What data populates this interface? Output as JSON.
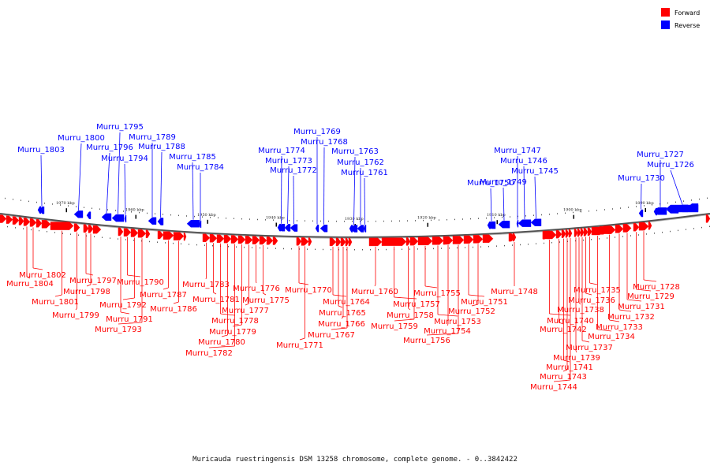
{
  "colors": {
    "forward": "#ff0000",
    "reverse": "#0000ff",
    "backbone": "#808080"
  },
  "legend": [
    {
      "label": "Forward",
      "color": "#ff0000"
    },
    {
      "label": "Reverse",
      "color": "#0000ff"
    }
  ],
  "caption": "Muricauda ruestringensis DSM 13258 chromosome, complete genome. - 0..3842422",
  "axis_ticks": [
    "1970 kbp",
    "1960 kbp",
    "1950 kbp",
    "1940 kbp",
    "1930 kbp",
    "1920 kbp",
    "1910 kbp",
    "1900 kbp",
    "1890 kbp"
  ],
  "reverse_genes": [
    "Murru_1803",
    "Murru_1800",
    "Murru_1796",
    "Murru_1795",
    "Murru_1794",
    "Murru_1789",
    "Murru_1788",
    "Murru_1785",
    "Murru_1784",
    "Murru_1774",
    "Murru_1773",
    "Murru_1772",
    "Murru_1769",
    "Murru_1768",
    "Murru_1763",
    "Murru_1762",
    "Murru_1761",
    "Murru_1750",
    "Murru_1749",
    "Murru_1747",
    "Murru_1746",
    "Murru_1745",
    "Murru_1730",
    "Murru_1727",
    "Murru_1726"
  ],
  "forward_genes": [
    "Murru_1802",
    "Murru_1804",
    "Murru_1801",
    "Murru_1799",
    "Murru_1797",
    "Murru_1798",
    "Murru_1790",
    "Murru_1792",
    "Murru_1791",
    "Murru_1793",
    "Murru_1787",
    "Murru_1786",
    "Murru_1783",
    "Murru_1781",
    "Murru_1778",
    "Murru_1780",
    "Murru_1782",
    "Murru_1779",
    "Murru_1777",
    "Murru_1776",
    "Murru_1775",
    "Murru_1770",
    "Murru_1771",
    "Murru_1764",
    "Murru_1765",
    "Murru_1766",
    "Murru_1767",
    "Murru_1760",
    "Murru_1757",
    "Murru_1758",
    "Murru_1759",
    "Murru_1755",
    "Murru_1753",
    "Murru_1754",
    "Murru_1756",
    "Murru_1751",
    "Murru_1752",
    "Murru_1748",
    "Murru_1740",
    "Murru_1742",
    "Murru_1741",
    "Murru_1743",
    "Murru_1744",
    "Murru_1739",
    "Murru_1738",
    "Murru_1737",
    "Murru_1736",
    "Murru_1735",
    "Murru_1734",
    "Murru_1733",
    "Murru_1732",
    "Murru_1731",
    "Murru_1729",
    "Murru_1728"
  ]
}
